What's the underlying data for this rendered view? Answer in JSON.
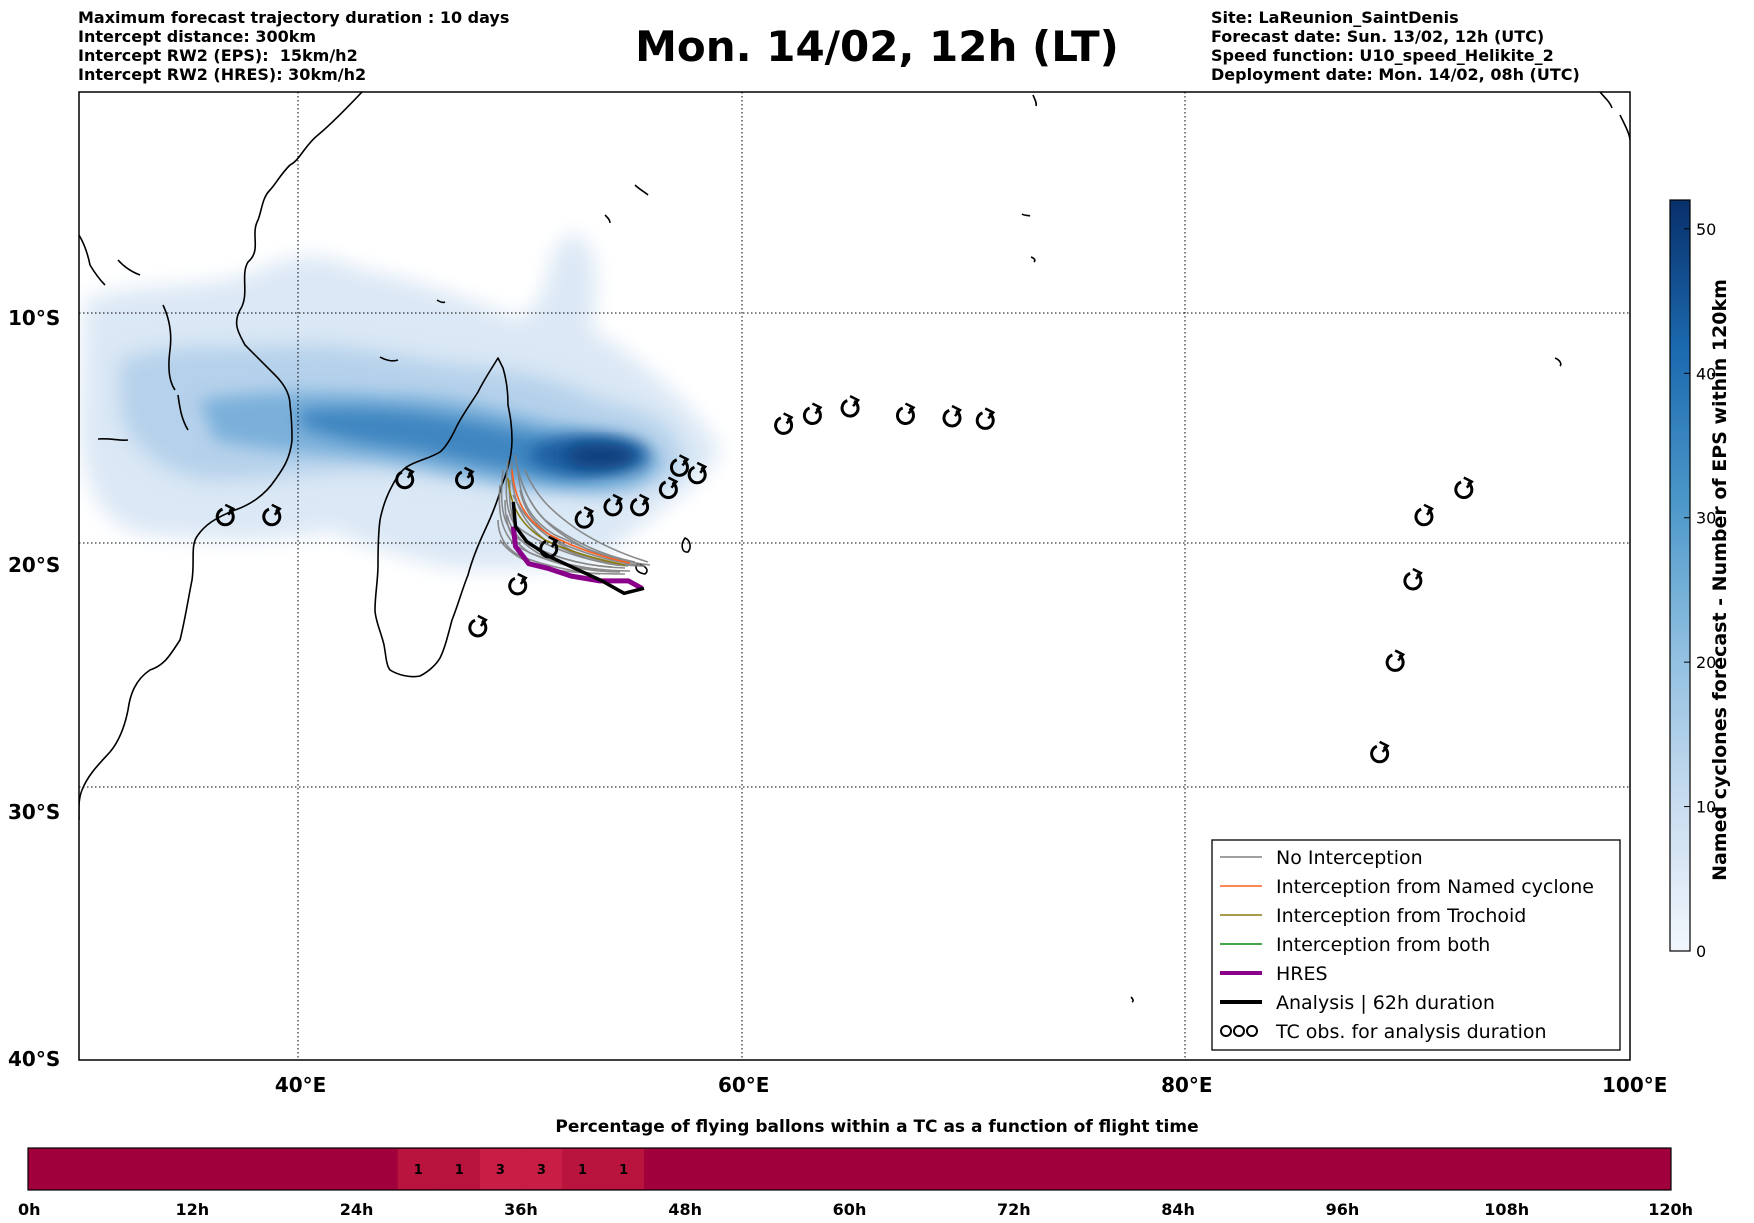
{
  "header": {
    "left": [
      "Maximum forecast trajectory duration : 10 days",
      "Intercept distance: 300km",
      "Intercept RW2 (EPS):  15km/h2",
      "Intercept RW2 (HRES): 30km/h2"
    ],
    "right": [
      "Site: LaReunion_SaintDenis",
      "Forecast date: Sun. 13/02, 12h (UTC)",
      "Speed function: U10_speed_Helikite_2",
      "Deployment date: Mon. 14/02, 08h (UTC)"
    ],
    "title": "Mon. 14/02, 12h (LT)"
  },
  "map": {
    "lon_range": [
      30,
      100
    ],
    "lat_range": [
      -40,
      -0.8
    ],
    "lat_ticks": [
      {
        "lat": -10,
        "label": "10°S"
      },
      {
        "lat": -20,
        "label": "20°S"
      },
      {
        "lat": -30,
        "label": "30°S"
      },
      {
        "lat": -40,
        "label": "40°S"
      }
    ],
    "lon_ticks": [
      {
        "lon": 40,
        "label": "40°E"
      },
      {
        "lon": 60,
        "label": "60°E"
      },
      {
        "lon": 80,
        "label": "80°E"
      },
      {
        "lon": 100,
        "label": "100°E"
      }
    ],
    "tc_observations": [
      [
        36.6,
        -18.0
      ],
      [
        38.7,
        -18.0
      ],
      [
        44.7,
        -16.5
      ],
      [
        47.4,
        -16.5
      ],
      [
        48.0,
        -22.5
      ],
      [
        49.8,
        -20.8
      ],
      [
        51.2,
        -19.3
      ],
      [
        52.8,
        -18.1
      ],
      [
        54.1,
        -17.6
      ],
      [
        55.3,
        -17.6
      ],
      [
        56.6,
        -16.9
      ],
      [
        57.1,
        -16.0
      ],
      [
        57.9,
        -16.3
      ],
      [
        61.8,
        -14.3
      ],
      [
        63.1,
        -13.9
      ],
      [
        64.8,
        -13.6
      ],
      [
        67.3,
        -13.9
      ],
      [
        69.4,
        -14.0
      ],
      [
        70.9,
        -14.1
      ],
      [
        88.7,
        -27.6
      ],
      [
        89.4,
        -23.9
      ],
      [
        90.2,
        -20.6
      ],
      [
        90.7,
        -18.0
      ],
      [
        92.5,
        -16.9
      ]
    ],
    "hres_track": [
      [
        49.6,
        -18.4
      ],
      [
        49.7,
        -19.2
      ],
      [
        50.3,
        -19.9
      ],
      [
        51.2,
        -20.1
      ],
      [
        52.2,
        -20.4
      ],
      [
        53.5,
        -20.6
      ],
      [
        54.8,
        -20.6
      ],
      [
        55.4,
        -20.9
      ]
    ],
    "analysis_track": [
      [
        49.6,
        -17.4
      ],
      [
        49.7,
        -18.4
      ],
      [
        50.2,
        -19.0
      ],
      [
        51.2,
        -19.6
      ],
      [
        52.4,
        -20.1
      ],
      [
        53.6,
        -20.6
      ],
      [
        54.6,
        -21.1
      ],
      [
        55.5,
        -20.9
      ]
    ],
    "analysis_duration_hours": 62
  },
  "legend": {
    "entries": [
      {
        "label": "No Interception",
        "color": "#808080"
      },
      {
        "label": "Interception from Named cyclone",
        "color": "#ff6020"
      },
      {
        "label": "Interception from Trochoid",
        "color": "#8b7a10"
      },
      {
        "label": "Interception from both",
        "color": "#0a8a0a"
      },
      {
        "label": "HRES",
        "color": "#8b008b"
      },
      {
        "label": "Analysis | 62h duration",
        "color": "#000000"
      },
      {
        "label": "TC obs. for analysis duration",
        "color": "#000000"
      }
    ]
  },
  "colorbar": {
    "title": "Named cyclones forecast - Number of EPS within 120km",
    "min": 0,
    "max": 52,
    "ticks": [
      0,
      10,
      20,
      30,
      40,
      50
    ],
    "color_low": "#e6eff9",
    "color_high": "#08306b"
  },
  "timeline": {
    "title": "Percentage of flying ballons within a TC as a function of flight time",
    "max_hours": 120,
    "base_color": "#a0003c",
    "highlight_color": "#b8143e",
    "highlight_color_strong": "#c81e46",
    "segments": [
      {
        "start_h": 27,
        "end_h": 30,
        "value": "1"
      },
      {
        "start_h": 30,
        "end_h": 33,
        "value": "1"
      },
      {
        "start_h": 33,
        "end_h": 36,
        "value": "3"
      },
      {
        "start_h": 36,
        "end_h": 39,
        "value": "3"
      },
      {
        "start_h": 39,
        "end_h": 42,
        "value": "1"
      },
      {
        "start_h": 42,
        "end_h": 45,
        "value": "1"
      }
    ],
    "tick_labels": [
      "0h",
      "12h",
      "24h",
      "36h",
      "48h",
      "60h",
      "72h",
      "84h",
      "96h",
      "108h",
      "120h"
    ]
  }
}
